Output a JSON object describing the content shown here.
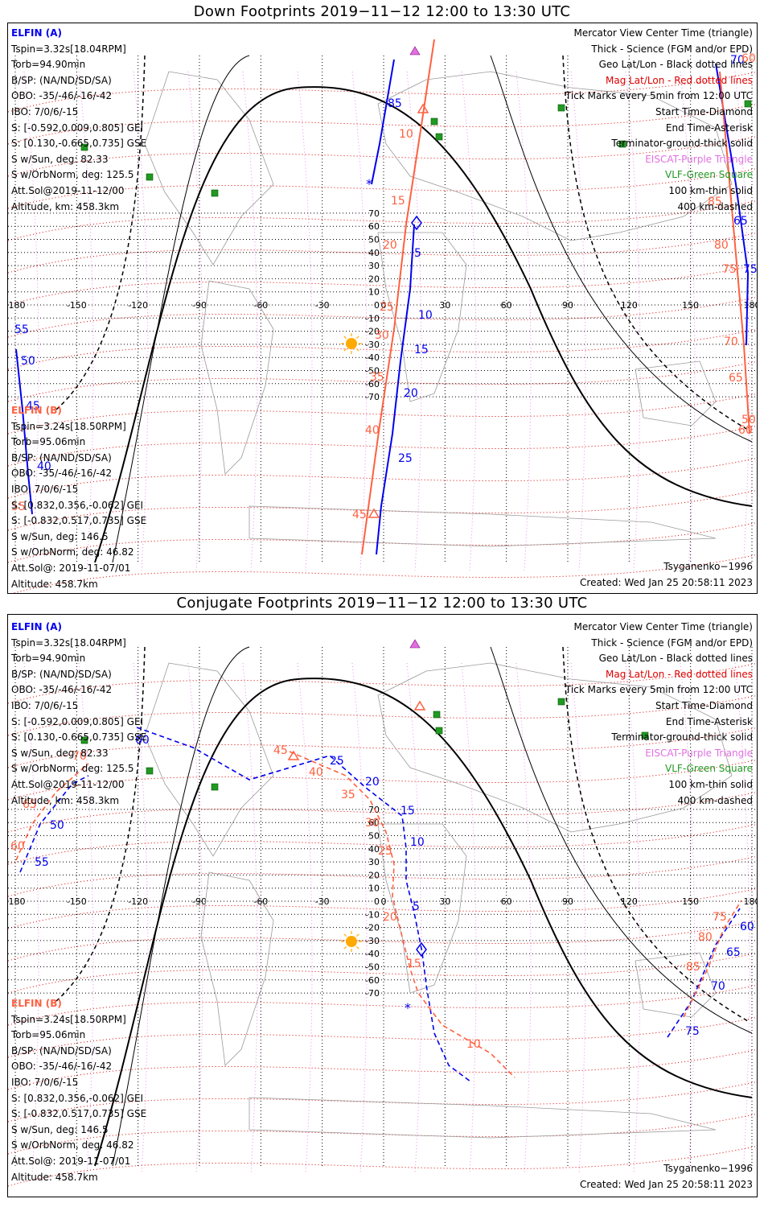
{
  "colors": {
    "elfin_a": "#0000ee",
    "elfin_b": "#ff6040",
    "mag_grid": "#dd0000",
    "eiscat": "#e070e0",
    "vlf": "#229922",
    "sun": "#ffaa00",
    "grid": "#000000"
  },
  "panels": [
    {
      "title": "Down Footprints 2019−11−12 12:00 to 13:30 UTC",
      "elfin_a": {
        "name": "ELFIN (A)",
        "lines": [
          "Tspin=3.32s[18.04RPM]",
          "Torb=94.90min",
          "B/SP: (NA/ND/SD/SA)",
          "OBO: -35/-46/-16/-42",
          "IBO: 7/0/6/-15",
          "S: [-0.592,0.009,0.805] GEI",
          "S: [0.130,-0.665,0.735] GSE",
          "S w/Sun, deg: 82.33",
          "S w/OrbNorm, deg: 125.5",
          "Att.Sol@2019-11-12/00",
          "Altitude, km: 458.3km"
        ]
      },
      "elfin_b": {
        "name": "ELFIN (B)",
        "lines": [
          "Tspin=3.24s[18.50RPM]",
          "Torb=95.06min",
          "B/SP: (NA/ND/SD/SA)",
          "OBO: -35/-46/-16/-42",
          "IBO: 7/0/6/-15",
          "S: [0.832,0.356,-0.062] GEI",
          "S: [-0.832,0.517,0.735] GSE",
          "S w/Sun, deg: 146.5",
          "S w/OrbNorm, deg: 46.82",
          "Att.Sol@: 2019-11-07/01",
          "Altitude: 458.7km"
        ]
      },
      "legend": [
        "Mercator View Center Time (triangle)",
        "Thick - Science (FGM and/or EPD)",
        "Geo Lat/Lon - Black dotted lines",
        "Mag Lat/Lon - Red dotted lines",
        "Tick Marks every 5min from 12:00 UTC",
        "Start Time-Diamond",
        "End Time-Asterisk",
        "Terminator-ground-thick solid",
        "EISCAT-Purple Triangle",
        "VLF-Green Square",
        "100 km-thin solid",
        "400 km-dashed"
      ],
      "model": "Tsyganenko−1996",
      "created": "Created: Wed Jan 25 20:58:11 2023",
      "lon_ticks": [
        "-180",
        "-150",
        "-120",
        "-90",
        "-60",
        "-30",
        "0",
        "30",
        "60",
        "90",
        "120",
        "150",
        "180"
      ],
      "lat_ticks": [
        "70",
        "60",
        "50",
        "40",
        "30",
        "20",
        "10",
        "0",
        "-10",
        "-20",
        "-30",
        "-40",
        "-50",
        "-60",
        "-70"
      ],
      "elfin_a_track_labels": [
        "85",
        "5",
        "10",
        "15",
        "20",
        "25",
        "55",
        "50",
        "45",
        "40",
        "70",
        "65",
        "75"
      ],
      "elfin_b_track_labels": [
        "10",
        "15",
        "20",
        "25",
        "30",
        "35",
        "40",
        "45",
        "60",
        "55",
        "50",
        "85",
        "80",
        "75",
        "70",
        "65",
        "60"
      ]
    },
    {
      "title": "Conjugate Footprints 2019−11−12 12:00 to 13:30 UTC",
      "elfin_a": {
        "name": "ELFIN (A)",
        "lines": [
          "Tspin=3.32s[18.04RPM]",
          "Torb=94.90min",
          "B/SP: (NA/ND/SD/SA)",
          "OBO: -35/-46/-16/-42",
          "IBO: 7/0/6/-15",
          "S: [-0.592,0.009,0.805] GEI",
          "S: [0.130,-0.665,0.735] GSE",
          "S w/Sun, deg: 82.33",
          "S w/OrbNorm, deg: 125.5",
          "Att.Sol@2019-11-12/00",
          "Altitude, km: 458.3km"
        ]
      },
      "elfin_b": {
        "name": "ELFIN (B)",
        "lines": [
          "Tspin=3.24s[18.50RPM]",
          "Torb=95.06min",
          "B/SP: (NA/ND/SD/SA)",
          "OBO: -35/-46/-16/-42",
          "IBO: 7/0/6/-15",
          "S: [0.832,0.356,-0.062] GEI",
          "S: [-0.832,0.517,0.735] GSE",
          "S w/Sun, deg: 146.5",
          "S w/OrbNorm, deg: 46.82",
          "Att.Sol@: 2019-11-07/01",
          "Altitude: 458.7km"
        ]
      },
      "legend": [
        "Mercator View Center Time (triangle)",
        "Thick - Science (FGM and/or EPD)",
        "Geo Lat/Lon - Black dotted lines",
        "Mag Lat/Lon - Red dotted lines",
        "Tick Marks every 5min from 12:00 UTC",
        "Start Time-Diamond",
        "End Time-Asterisk",
        "Terminator-ground-thick solid",
        "EISCAT-Purple Triangle",
        "VLF-Green Square",
        "100 km-thin solid",
        "400 km-dashed"
      ],
      "model": "Tsyganenko−1996",
      "created": "Created: Wed Jan 25 20:58:11 2023",
      "lon_ticks": [
        "-180",
        "-150",
        "-120",
        "-90",
        "-60",
        "-30",
        "0",
        "30",
        "60",
        "90",
        "120",
        "150",
        "180"
      ],
      "lat_ticks": [
        "70",
        "60",
        "50",
        "40",
        "30",
        "20",
        "10",
        "0",
        "-10",
        "-20",
        "-30",
        "-40",
        "-50",
        "-60",
        "-70"
      ],
      "elfin_a_track_labels": [
        "25",
        "20",
        "15",
        "10",
        "5",
        "60",
        "50",
        "55",
        "75",
        "70",
        "65",
        "60"
      ],
      "elfin_b_track_labels": [
        "45",
        "40",
        "35",
        "30",
        "25",
        "20",
        "15",
        "10",
        "65",
        "60",
        "70",
        "75",
        "80",
        "85"
      ]
    }
  ]
}
